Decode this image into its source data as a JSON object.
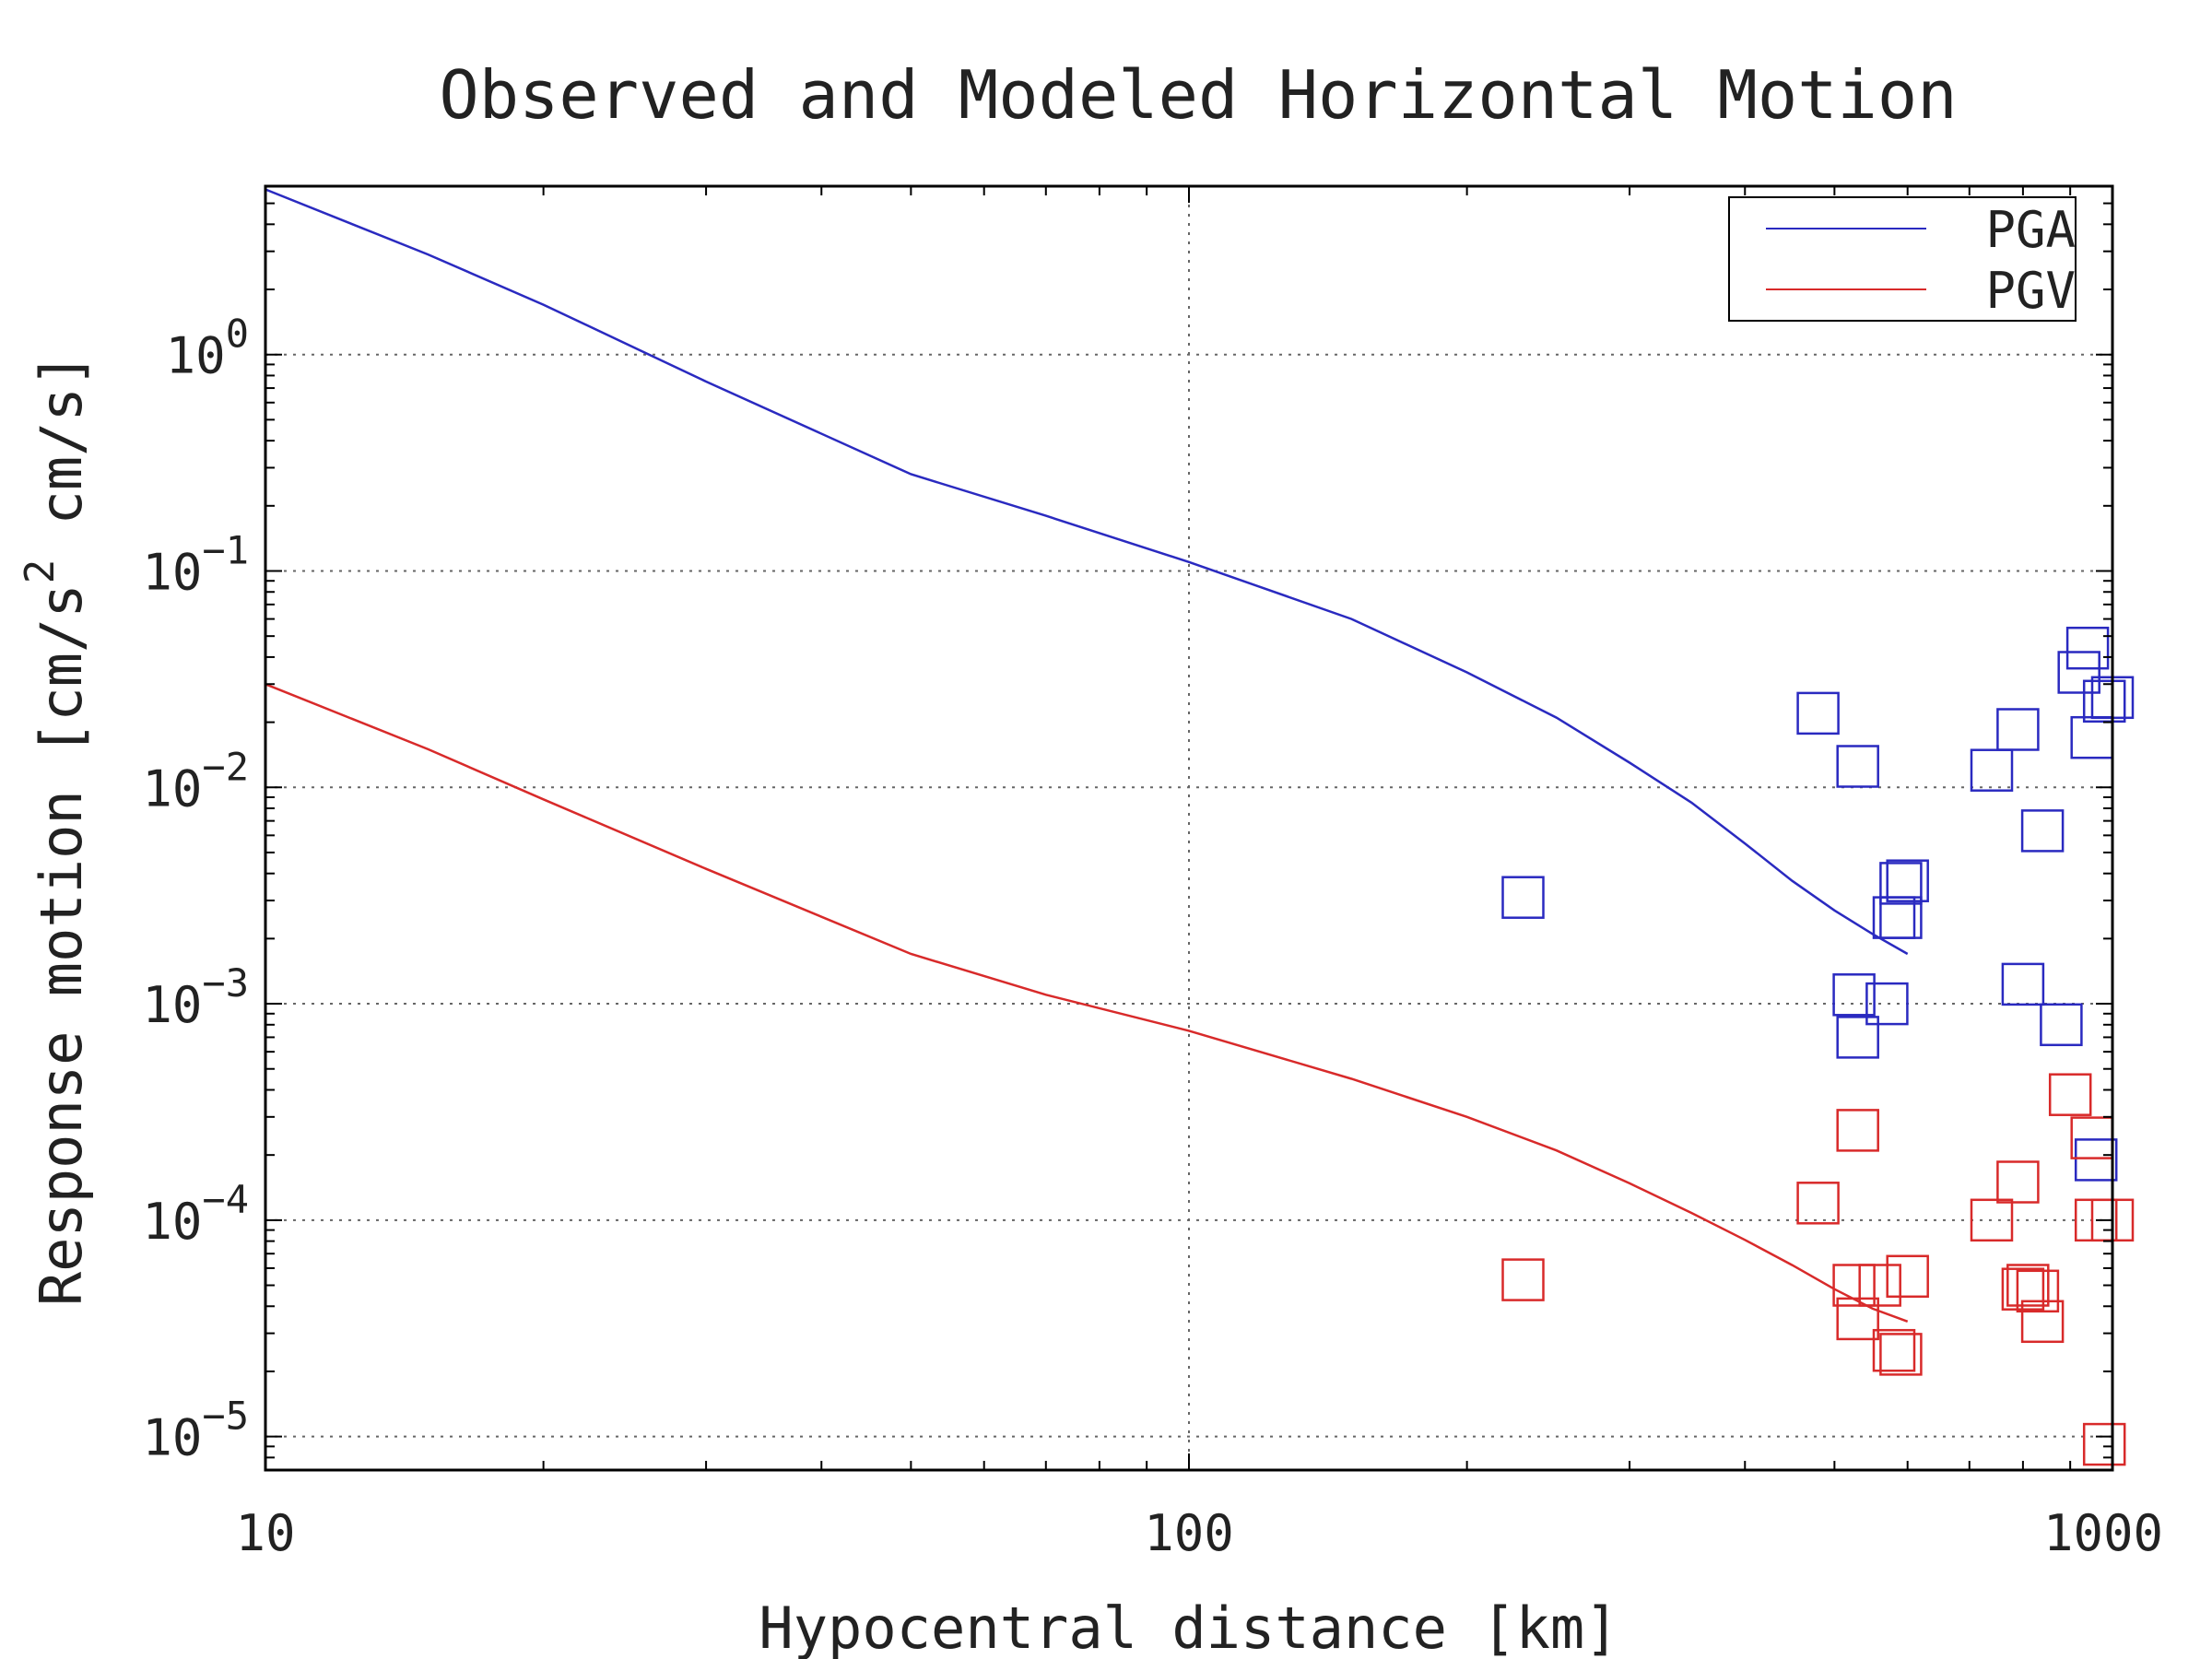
{
  "chart_data": {
    "type": "scatter",
    "title": "Observed and Modeled Horizontal Motion",
    "xlabel": "Hypocentral distance [km]",
    "ylabel": {
      "main": "Response motion [cm/s",
      "sup": "2",
      "tail": " cm/s]"
    },
    "xscale": "log",
    "yscale": "log",
    "xlim": [
      10,
      1000
    ],
    "ylim": [
      7e-06,
      6
    ],
    "grid": true,
    "legend_position": "top-right",
    "x_ticks": [
      {
        "value": 10,
        "label": "10"
      },
      {
        "value": 100,
        "label": "100"
      },
      {
        "value": 1000,
        "label": "1000"
      }
    ],
    "y_ticks": [
      {
        "value": 1,
        "base": "10",
        "exp": "0"
      },
      {
        "value": 0.1,
        "base": "10",
        "exp": "−1"
      },
      {
        "value": 0.01,
        "base": "10",
        "exp": "−2"
      },
      {
        "value": 0.001,
        "base": "10",
        "exp": "−3"
      },
      {
        "value": 0.0001,
        "base": "10",
        "exp": "−4"
      },
      {
        "value": 1e-05,
        "base": "10",
        "exp": "−5"
      }
    ],
    "series": [
      {
        "name": "PGA",
        "color": "#2a2ac0",
        "line": {
          "x": [
            10,
            15,
            20,
            30,
            50,
            70,
            100,
            150,
            200,
            250,
            300,
            350,
            400,
            450,
            500,
            550,
            600
          ],
          "y": [
            5.8,
            2.9,
            1.7,
            0.75,
            0.28,
            0.18,
            0.11,
            0.06,
            0.034,
            0.021,
            0.013,
            0.0085,
            0.0055,
            0.0037,
            0.0027,
            0.0021,
            0.0017
          ]
        },
        "observed": {
          "x": [
            230,
            480,
            530,
            525,
            530,
            580,
            570,
            590,
            590,
            600,
            740,
            790,
            800,
            840,
            880,
            920,
            940,
            950,
            960,
            980,
            1000
          ],
          "y": [
            0.0031,
            0.022,
            0.0125,
            0.0011,
            0.0007,
            0.0025,
            0.001,
            0.0025,
            0.0036,
            0.0037,
            0.012,
            0.0185,
            0.00123,
            0.0063,
            0.0008,
            0.034,
            0.044,
            0.017,
            0.00019,
            0.025,
            0.026
          ]
        }
      },
      {
        "name": "PGV",
        "color": "#d82a2a",
        "line": {
          "x": [
            10,
            15,
            20,
            30,
            50,
            70,
            100,
            150,
            200,
            250,
            300,
            350,
            400,
            450,
            500,
            550,
            600
          ],
          "y": [
            0.03,
            0.015,
            0.0088,
            0.0042,
            0.0017,
            0.0011,
            0.00075,
            0.00045,
            0.0003,
            0.00021,
            0.000148,
            0.000108,
            8.1e-05,
            6.2e-05,
            4.8e-05,
            3.9e-05,
            3.4e-05
          ]
        },
        "observed": {
          "x": [
            230,
            480,
            530,
            525,
            530,
            560,
            580,
            590,
            600,
            740,
            790,
            800,
            810,
            830,
            840,
            900,
            950,
            960,
            980,
            1000
          ],
          "y": [
            5.3e-05,
            0.00012,
            0.00026,
            5e-05,
            3.5e-05,
            5e-05,
            2.5e-05,
            2.4e-05,
            5.5e-05,
            0.0001,
            0.00015,
            4.8e-05,
            5e-05,
            4.7e-05,
            3.4e-05,
            0.00038,
            0.00024,
            0.0001,
            9.2e-06,
            0.0001
          ]
        }
      }
    ]
  }
}
